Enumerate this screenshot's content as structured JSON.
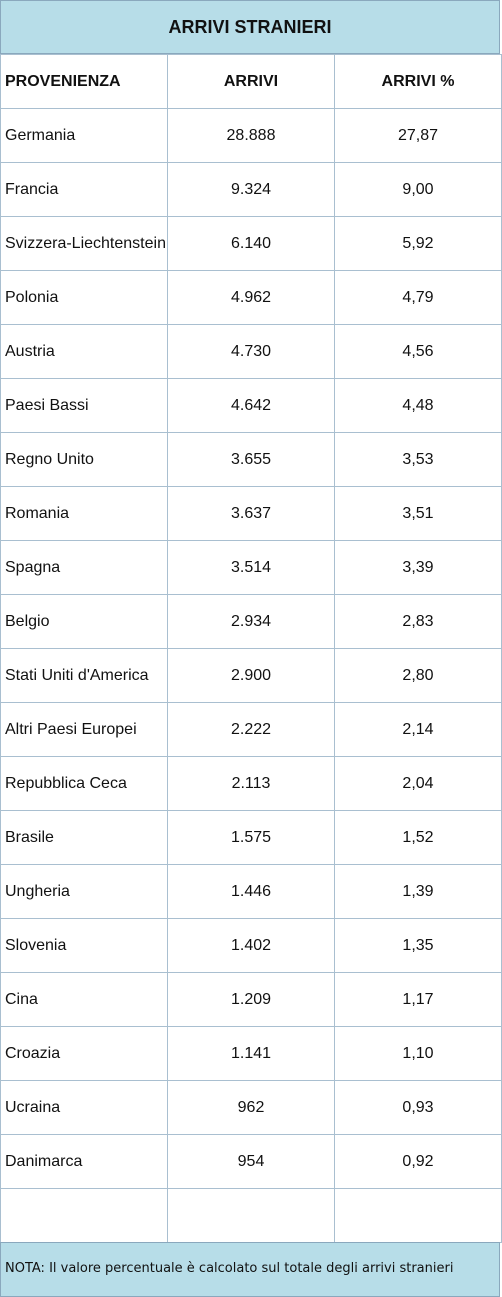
{
  "title": "ARRIVI STRANIERI",
  "headers": {
    "provenienza": "PROVENIENZA",
    "arrivi": "ARRIVI",
    "arrivi_pct": "ARRIVI %"
  },
  "rows": [
    {
      "provenienza": "Germania",
      "arrivi": "28.888",
      "arrivi_pct": "27,87"
    },
    {
      "provenienza": "Francia",
      "arrivi": "9.324",
      "arrivi_pct": "9,00"
    },
    {
      "provenienza": "Svizzera-Liechtenstein",
      "arrivi": "6.140",
      "arrivi_pct": "5,92"
    },
    {
      "provenienza": "Polonia",
      "arrivi": "4.962",
      "arrivi_pct": "4,79"
    },
    {
      "provenienza": "Austria",
      "arrivi": "4.730",
      "arrivi_pct": "4,56"
    },
    {
      "provenienza": "Paesi Bassi",
      "arrivi": "4.642",
      "arrivi_pct": "4,48"
    },
    {
      "provenienza": "Regno Unito",
      "arrivi": "3.655",
      "arrivi_pct": "3,53"
    },
    {
      "provenienza": "Romania",
      "arrivi": "3.637",
      "arrivi_pct": "3,51"
    },
    {
      "provenienza": "Spagna",
      "arrivi": "3.514",
      "arrivi_pct": "3,39"
    },
    {
      "provenienza": "Belgio",
      "arrivi": "2.934",
      "arrivi_pct": "2,83"
    },
    {
      "provenienza": "Stati Uniti d'America",
      "arrivi": "2.900",
      "arrivi_pct": "2,80"
    },
    {
      "provenienza": "Altri Paesi Europei",
      "arrivi": "2.222",
      "arrivi_pct": "2,14"
    },
    {
      "provenienza": "Repubblica Ceca",
      "arrivi": "2.113",
      "arrivi_pct": "2,04"
    },
    {
      "provenienza": "Brasile",
      "arrivi": "1.575",
      "arrivi_pct": "1,52"
    },
    {
      "provenienza": "Ungheria",
      "arrivi": "1.446",
      "arrivi_pct": "1,39"
    },
    {
      "provenienza": "Slovenia",
      "arrivi": "1.402",
      "arrivi_pct": "1,35"
    },
    {
      "provenienza": "Cina",
      "arrivi": "1.209",
      "arrivi_pct": "1,17"
    },
    {
      "provenienza": "Croazia",
      "arrivi": "1.141",
      "arrivi_pct": "1,10"
    },
    {
      "provenienza": "Ucraina",
      "arrivi": "962",
      "arrivi_pct": "0,93"
    },
    {
      "provenienza": "Danimarca",
      "arrivi": "954",
      "arrivi_pct": "0,92"
    }
  ],
  "note": "NOTA: Il valore percentuale è calcolato sul totale degli arrivi stranieri",
  "colors": {
    "header_bg": "#b7dde8",
    "border": "#a9bfd0"
  }
}
